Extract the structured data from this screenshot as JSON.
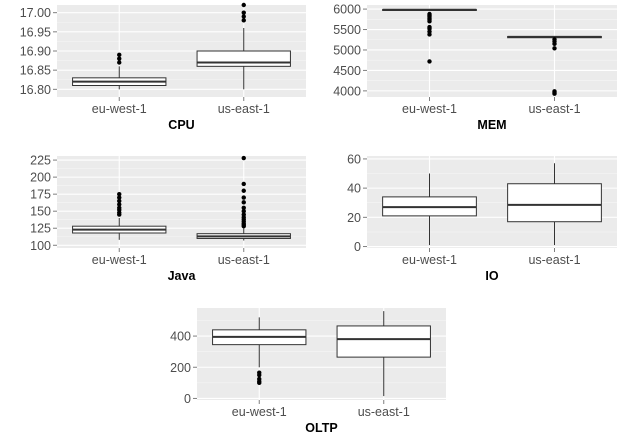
{
  "chart_data": [
    {
      "type": "boxplot",
      "title": "CPU",
      "categories": [
        "eu-west-1",
        "us-east-1"
      ],
      "yticks": [
        "16.80",
        "16.85",
        "16.90",
        "16.95",
        "17.00"
      ],
      "ylim": [
        16.78,
        17.02
      ],
      "boxes": [
        {
          "category": "eu-west-1",
          "whisker_low": 16.8,
          "q1": 16.81,
          "median": 16.82,
          "q3": 16.83,
          "whisker_high": 16.86,
          "outliers": [
            16.87,
            16.88,
            16.89
          ]
        },
        {
          "category": "us-east-1",
          "whisker_low": 16.8,
          "q1": 16.86,
          "median": 16.87,
          "q3": 16.9,
          "whisker_high": 16.96,
          "outliers": [
            16.98,
            16.99,
            17.0,
            17.02
          ]
        }
      ]
    },
    {
      "type": "boxplot",
      "title": "MEM",
      "categories": [
        "eu-west-1",
        "us-east-1"
      ],
      "yticks": [
        "4000",
        "4500",
        "5000",
        "5500",
        "6000"
      ],
      "ylim": [
        3850,
        6100
      ],
      "boxes": [
        {
          "category": "eu-west-1",
          "whisker_low": 5960,
          "q1": 5970,
          "median": 5985,
          "q3": 5990,
          "whisker_high": 6000,
          "outliers": [
            4720,
            5380,
            5450,
            5520,
            5560,
            5700,
            5740,
            5780,
            5820,
            5850,
            5880
          ]
        },
        {
          "category": "us-east-1",
          "whisker_low": 5290,
          "q1": 5300,
          "median": 5320,
          "q3": 5330,
          "whisker_high": 5340,
          "outliers": [
            3930,
            3960,
            3990,
            5040,
            5150,
            5210,
            5260
          ]
        }
      ]
    },
    {
      "type": "boxplot",
      "title": "Java",
      "categories": [
        "eu-west-1",
        "us-east-1"
      ],
      "yticks": [
        "100",
        "125",
        "150",
        "175",
        "200",
        "225"
      ],
      "ylim": [
        96,
        231
      ],
      "boxes": [
        {
          "category": "eu-west-1",
          "whisker_low": 108,
          "q1": 118,
          "median": 123,
          "q3": 128,
          "whisker_high": 140,
          "outliers": [
            145,
            148,
            152,
            155,
            160,
            165,
            170,
            175
          ]
        },
        {
          "category": "us-east-1",
          "whisker_low": 107,
          "q1": 110,
          "median": 113,
          "q3": 117,
          "whisker_high": 125,
          "outliers": [
            128,
            130,
            132,
            135,
            138,
            141,
            145,
            150,
            155,
            163,
            170,
            180,
            190,
            228
          ]
        }
      ]
    },
    {
      "type": "boxplot",
      "title": "IO",
      "categories": [
        "eu-west-1",
        "us-east-1"
      ],
      "yticks": [
        "0",
        "20",
        "40",
        "60"
      ],
      "ylim": [
        -1,
        62
      ],
      "boxes": [
        {
          "category": "eu-west-1",
          "whisker_low": 1,
          "q1": 21,
          "median": 27,
          "q3": 34,
          "whisker_high": 50,
          "outliers": []
        },
        {
          "category": "us-east-1",
          "whisker_low": 1,
          "q1": 17,
          "median": 28.5,
          "q3": 43,
          "whisker_high": 57,
          "outliers": []
        }
      ]
    },
    {
      "type": "boxplot",
      "title": "OLTP",
      "categories": [
        "eu-west-1",
        "us-east-1"
      ],
      "yticks": [
        "0",
        "200",
        "400"
      ],
      "ylim": [
        -10,
        580
      ],
      "boxes": [
        {
          "category": "eu-west-1",
          "whisker_low": 200,
          "q1": 345,
          "median": 395,
          "q3": 440,
          "whisker_high": 520,
          "outliers": [
            100,
            110,
            125,
            150,
            165
          ]
        },
        {
          "category": "us-east-1",
          "whisker_low": 15,
          "q1": 265,
          "median": 380,
          "q3": 465,
          "whisker_high": 560,
          "outliers": []
        }
      ]
    }
  ]
}
